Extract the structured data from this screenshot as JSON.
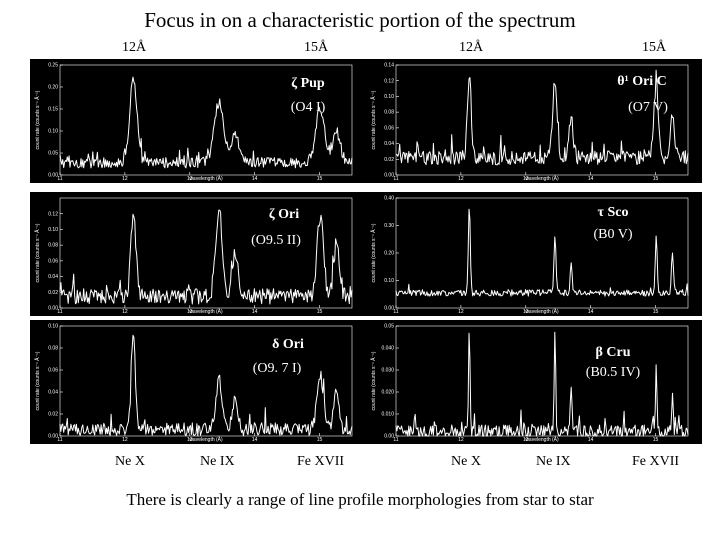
{
  "title": "Focus in on a characteristic portion of the spectrum",
  "wavelength_markers": {
    "left": [
      "12Å",
      "15Å"
    ],
    "right": [
      "12Å",
      "15Å"
    ]
  },
  "ion_labels": {
    "left": [
      "Ne X",
      "Ne IX",
      "Fe XVII"
    ],
    "right": [
      "Ne X",
      "Ne IX",
      "Fe XVII"
    ]
  },
  "footer": "There is clearly a range of line profile morphologies from star to star",
  "colors": {
    "panel_bg": "#000000",
    "trace": "#ffffff",
    "page_bg": "#ffffff"
  },
  "chart_data": [
    {
      "type": "line",
      "star": "ζ Pup",
      "spectral_type": "(O4 I)",
      "xlabel": "wavelength (Å)",
      "ylabel": "count rate (counts s⁻¹ Å⁻¹)",
      "xlim": [
        11,
        15.5
      ],
      "ylim": [
        0,
        0.25
      ],
      "xticks": [
        11,
        12,
        13,
        14,
        15
      ],
      "yticks": [
        0,
        0.05,
        0.1,
        0.15,
        0.2,
        0.25
      ],
      "continuum": 0.028,
      "noise": 0.012,
      "lines": [
        {
          "ion": "Ne X",
          "center": 12.13,
          "peak": 0.195,
          "width": 0.055
        },
        {
          "ion": "Ne IX",
          "center": 13.45,
          "peak": 0.135,
          "width": 0.075
        },
        {
          "ion": "Ne IX",
          "center": 13.7,
          "peak": 0.06,
          "width": 0.06
        },
        {
          "ion": "Fe XVII",
          "center": 15.01,
          "peak": 0.12,
          "width": 0.07
        },
        {
          "ion": "Fe XVII",
          "center": 15.26,
          "peak": 0.07,
          "width": 0.06
        }
      ]
    },
    {
      "type": "line",
      "star": "θ¹ Ori C",
      "spectral_type": "(O7 V)",
      "xlabel": "wavelength (Å)",
      "ylabel": "count rate (counts s⁻¹ Å⁻¹)",
      "xlim": [
        11,
        15.5
      ],
      "ylim": [
        0,
        0.14
      ],
      "xticks": [
        11,
        12,
        13,
        14,
        15
      ],
      "yticks": [
        0,
        0.02,
        0.04,
        0.06,
        0.08,
        0.1,
        0.12,
        0.14
      ],
      "continuum": 0.022,
      "noise": 0.009,
      "lines": [
        {
          "ion": "Ne X",
          "center": 12.13,
          "peak": 0.105,
          "width": 0.03
        },
        {
          "ion": "Ne IX",
          "center": 13.45,
          "peak": 0.1,
          "width": 0.035
        },
        {
          "ion": "Ne IX",
          "center": 13.7,
          "peak": 0.055,
          "width": 0.03
        },
        {
          "ion": "Fe XVII",
          "center": 15.01,
          "peak": 0.09,
          "width": 0.035
        },
        {
          "ion": "Fe XVII",
          "center": 15.26,
          "peak": 0.06,
          "width": 0.03
        }
      ]
    },
    {
      "type": "line",
      "star": "ζ Ori",
      "spectral_type": "(O9.5 II)",
      "xlabel": "wavelength (Å)",
      "ylabel": "count rate (counts s⁻¹ Å⁻¹)",
      "xlim": [
        11,
        15.5
      ],
      "ylim": [
        0,
        0.14
      ],
      "xticks": [
        11,
        12,
        13,
        14,
        15
      ],
      "yticks": [
        0,
        0.02,
        0.04,
        0.06,
        0.08,
        0.1,
        0.12
      ],
      "continuum": 0.015,
      "noise": 0.01,
      "lines": [
        {
          "ion": "Ne X",
          "center": 12.13,
          "peak": 0.105,
          "width": 0.04
        },
        {
          "ion": "Ne IX",
          "center": 13.45,
          "peak": 0.11,
          "width": 0.05
        },
        {
          "ion": "Ne IX",
          "center": 13.7,
          "peak": 0.06,
          "width": 0.04
        },
        {
          "ion": "Fe XVII",
          "center": 15.01,
          "peak": 0.1,
          "width": 0.05
        },
        {
          "ion": "Fe XVII",
          "center": 15.26,
          "peak": 0.07,
          "width": 0.04
        }
      ]
    },
    {
      "type": "line",
      "star": "τ Sco",
      "spectral_type": "(B0  V)",
      "xlabel": "wavelength (Å)",
      "ylabel": "count rate (counts s⁻¹ Å⁻¹)",
      "xlim": [
        11,
        15.5
      ],
      "ylim": [
        0,
        0.4
      ],
      "xticks": [
        11,
        12,
        13,
        14,
        15
      ],
      "yticks": [
        0,
        0.1,
        0.2,
        0.3,
        0.4
      ],
      "continuum": 0.055,
      "noise": 0.012,
      "lines": [
        {
          "ion": "Ne X",
          "center": 12.13,
          "peak": 0.32,
          "width": 0.015
        },
        {
          "ion": "Ne IX",
          "center": 13.45,
          "peak": 0.22,
          "width": 0.015
        },
        {
          "ion": "Ne IX",
          "center": 13.7,
          "peak": 0.12,
          "width": 0.015
        },
        {
          "ion": "Fe XVII",
          "center": 15.01,
          "peak": 0.2,
          "width": 0.015
        },
        {
          "ion": "Fe XVII",
          "center": 15.26,
          "peak": 0.15,
          "width": 0.015
        }
      ]
    },
    {
      "type": "line",
      "star": "δ Ori",
      "spectral_type": "(O9. 7 I)",
      "xlabel": "wavelength (Å)",
      "ylabel": "count rate (counts s⁻¹ Å⁻¹)",
      "xlim": [
        11,
        15.5
      ],
      "ylim": [
        0,
        0.1
      ],
      "xticks": [
        11,
        12,
        13,
        14,
        15
      ],
      "yticks": [
        0,
        0.02,
        0.04,
        0.06,
        0.08,
        0.1
      ],
      "continuum": 0.006,
      "noise": 0.006,
      "lines": [
        {
          "ion": "Ne X",
          "center": 12.13,
          "peak": 0.09,
          "width": 0.03
        },
        {
          "ion": "Ne IX",
          "center": 13.45,
          "peak": 0.045,
          "width": 0.05
        },
        {
          "ion": "Ne IX",
          "center": 13.7,
          "peak": 0.03,
          "width": 0.04
        },
        {
          "ion": "Fe XVII",
          "center": 15.01,
          "peak": 0.05,
          "width": 0.05
        },
        {
          "ion": "Fe XVII",
          "center": 15.26,
          "peak": 0.04,
          "width": 0.04
        }
      ]
    },
    {
      "type": "line",
      "star": "β Cru",
      "spectral_type": "(B0.5 IV)",
      "xlabel": "wavelength (Å)",
      "ylabel": "count rate (counts s⁻¹ Å⁻¹)",
      "xlim": [
        11,
        15.5
      ],
      "ylim": [
        0,
        0.05
      ],
      "xticks": [
        11,
        12,
        13,
        14,
        15
      ],
      "yticks": [
        0,
        0.01,
        0.02,
        0.03,
        0.04,
        0.05
      ],
      "continuum": 0.002,
      "noise": 0.003,
      "lines": [
        {
          "ion": "Ne X",
          "center": 12.13,
          "peak": 0.048,
          "width": 0.012
        },
        {
          "ion": "Ne IX",
          "center": 13.45,
          "peak": 0.044,
          "width": 0.012
        },
        {
          "ion": "Ne IX",
          "center": 13.7,
          "peak": 0.022,
          "width": 0.012
        },
        {
          "ion": "Fe XVII",
          "center": 15.01,
          "peak": 0.03,
          "width": 0.012
        },
        {
          "ion": "Fe XVII",
          "center": 15.26,
          "peak": 0.02,
          "width": 0.012
        }
      ]
    }
  ]
}
